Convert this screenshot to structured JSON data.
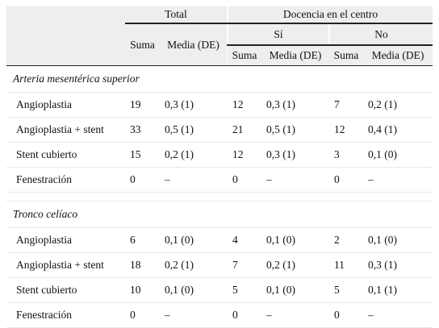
{
  "table": {
    "header": {
      "total": "Total",
      "docencia": "Docencia en el centro",
      "si": "Sí",
      "no": "No",
      "suma": "Suma",
      "media": "Media (DE)"
    },
    "sections": [
      {
        "title": "Arteria mesentérica superior",
        "rows": [
          [
            "Angioplastia",
            19,
            "0,3 (1)",
            12,
            "0,3 (1)",
            7,
            "0,2 (1)"
          ],
          [
            "Angioplastia + stent",
            33,
            "0,5 (1)",
            21,
            "0,5 (1)",
            12,
            "0,4 (1)"
          ],
          [
            "Stent cubierto",
            15,
            "0,2 (1)",
            12,
            "0,3 (1)",
            3,
            "0,1 (0)"
          ],
          [
            "Fenestración",
            0,
            "–",
            0,
            "–",
            0,
            "–"
          ]
        ]
      },
      {
        "title": "Tronco celíaco",
        "rows": [
          [
            "Angioplastia",
            6,
            "0,1 (0)",
            4,
            "0,1 (0)",
            2,
            "0,1 (0)"
          ],
          [
            "Angioplastia + stent",
            18,
            "0,2 (1)",
            7,
            "0,2 (1)",
            11,
            "0,3 (1)"
          ],
          [
            "Stent cubierto",
            10,
            "0,1 (0)",
            5,
            "0,1 (0)",
            5,
            "0,1 (1)"
          ],
          [
            "Fenestración",
            0,
            "–",
            0,
            "–",
            0,
            "–"
          ]
        ]
      }
    ]
  }
}
